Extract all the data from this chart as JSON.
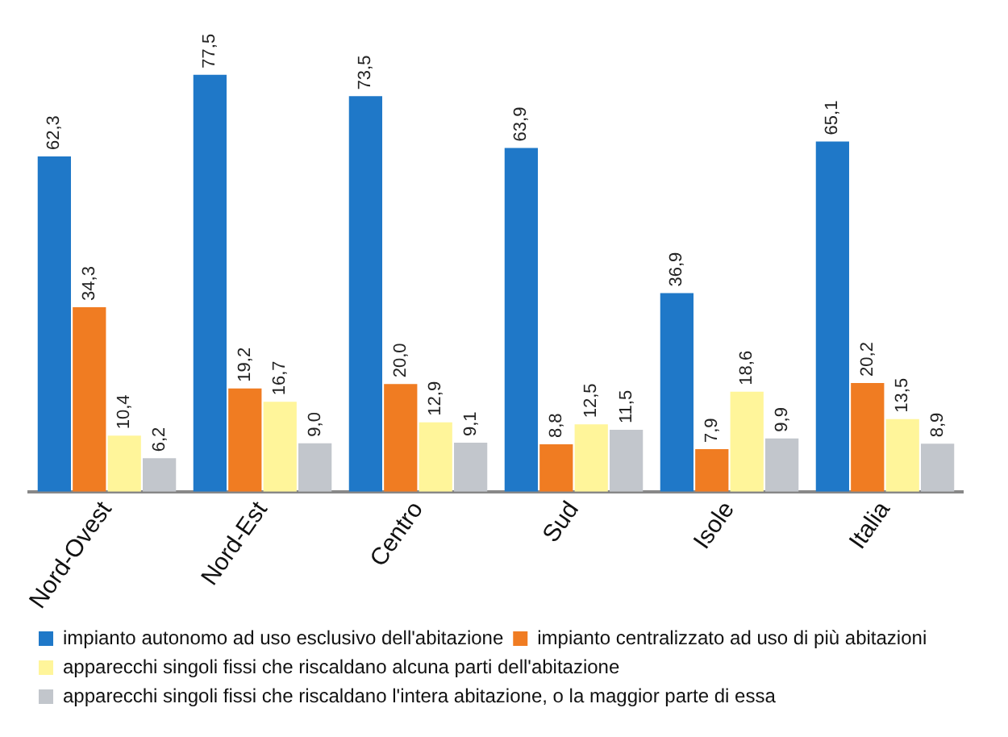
{
  "chart_data": {
    "type": "bar",
    "categories": [
      "Nord-Ovest",
      "Nord-Est",
      "Centro",
      "Sud",
      "Isole",
      "Italia"
    ],
    "series": [
      {
        "name": "impianto autonomo ad uso esclusivo dell'abitazione",
        "color": "#1f78c8",
        "values": [
          62.3,
          77.5,
          73.5,
          63.9,
          36.9,
          65.1
        ],
        "value_labels": [
          "62,3",
          "77,5",
          "73,5",
          "63,9",
          "36,9",
          "65,1"
        ]
      },
      {
        "name": "impianto centralizzato ad uso di più abitazioni",
        "color": "#f07c22",
        "values": [
          34.3,
          19.2,
          20.0,
          8.8,
          7.9,
          20.2
        ],
        "value_labels": [
          "34,3",
          "19,2",
          "20,0",
          "8,8",
          "7,9",
          "20,2"
        ]
      },
      {
        "name": "apparecchi singoli fissi che riscaldano alcuna parti dell'abitazione",
        "color": "#fff59a",
        "values": [
          10.4,
          16.7,
          12.9,
          12.5,
          18.6,
          13.5
        ],
        "value_labels": [
          "10,4",
          "16,7",
          "12,9",
          "12,5",
          "18,6",
          "13,5"
        ]
      },
      {
        "name": "apparecchi singoli fissi che riscaldano l'intera abitazione, o la maggior parte di essa",
        "color": "#c2c6cc",
        "values": [
          6.2,
          9.0,
          9.1,
          11.5,
          9.9,
          8.9
        ],
        "value_labels": [
          "6,2",
          "9,0",
          "9,1",
          "11,5",
          "9,9",
          "8,9"
        ]
      }
    ],
    "legend": "bottom",
    "grid": false
  }
}
